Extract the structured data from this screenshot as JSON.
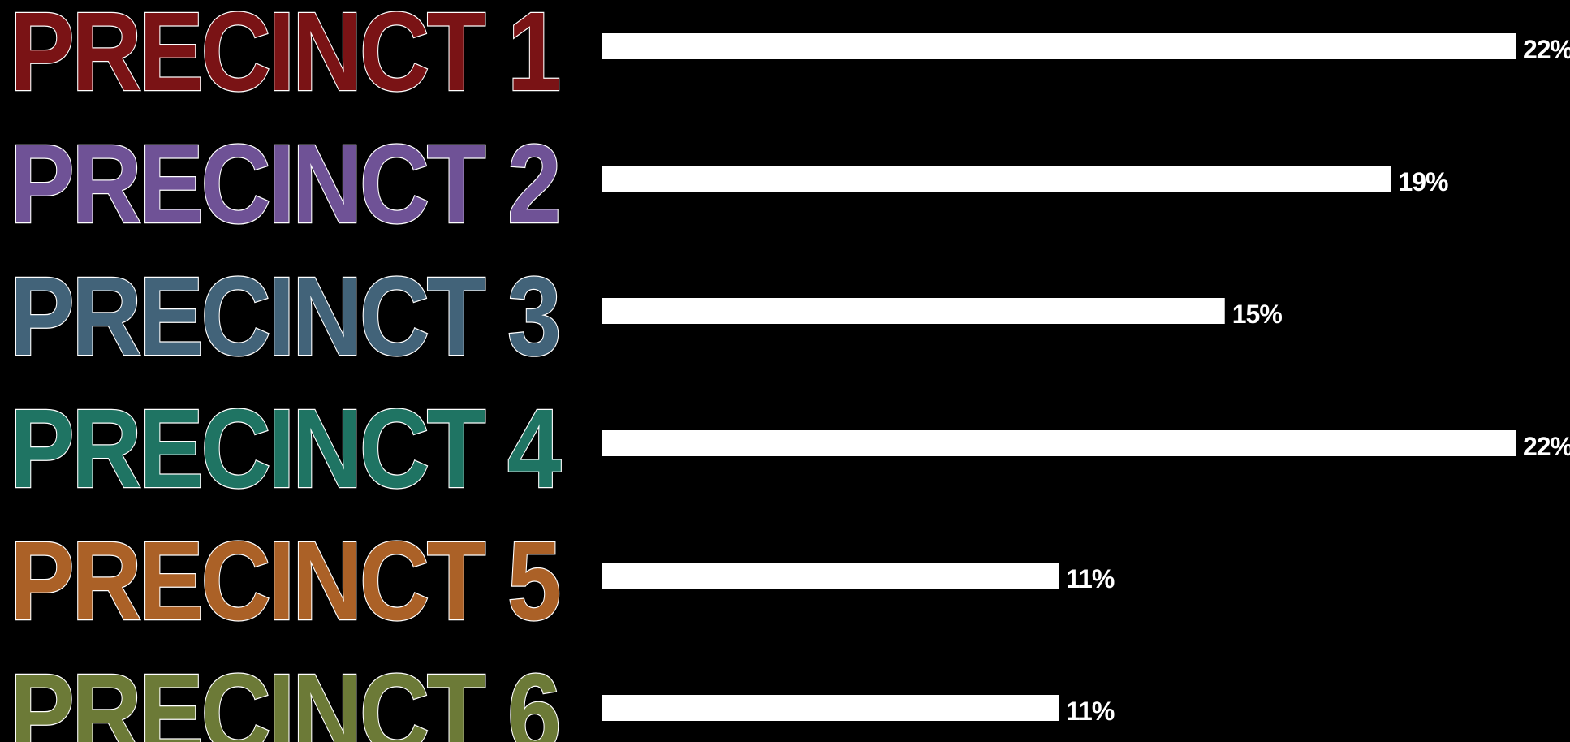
{
  "chart_data": {
    "type": "bar",
    "orientation": "horizontal",
    "categories": [
      "PRECINCT 1",
      "PRECINCT 2",
      "PRECINCT 3",
      "PRECINCT 4",
      "PRECINCT 5",
      "PRECINCT 6"
    ],
    "values": [
      22,
      19,
      15,
      22,
      11,
      11
    ],
    "value_labels": [
      "22%",
      "19%",
      "15%",
      "22%",
      "11%",
      "11%"
    ],
    "category_colors": [
      "#7a1315",
      "#6f5296",
      "#426379",
      "#1f7463",
      "#ab6127",
      "#6c7a37"
    ],
    "bar_color": "#ffffff",
    "background": "#000000",
    "xlim": [
      0,
      22
    ],
    "grid": false,
    "legend": "none"
  }
}
